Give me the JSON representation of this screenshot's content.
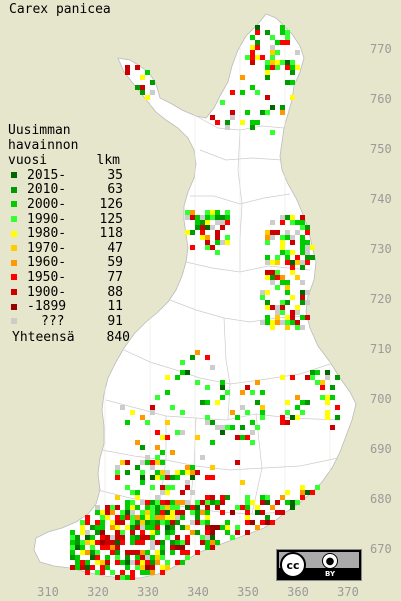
{
  "title": "Carex panicea",
  "legend": {
    "header_line1": "Uusimman",
    "header_line2": "havainnon",
    "header_line3": "vuosi",
    "count_header": "lkm",
    "rows": [
      {
        "label": "2015-",
        "count": "35",
        "color": "#006600"
      },
      {
        "label": "2010-",
        "count": "63",
        "color": "#009900"
      },
      {
        "label": "2000-",
        "count": "126",
        "color": "#00cc00"
      },
      {
        "label": "1990-",
        "count": "125",
        "color": "#33ff33"
      },
      {
        "label": "1980-",
        "count": "118",
        "color": "#ffff00"
      },
      {
        "label": "1970-",
        "count": "47",
        "color": "#ffcc00"
      },
      {
        "label": "1960-",
        "count": "59",
        "color": "#ff9900"
      },
      {
        "label": "1950-",
        "count": "77",
        "color": "#ff0000"
      },
      {
        "label": "1900-",
        "count": "88",
        "color": "#cc0000"
      },
      {
        "label": "-1899",
        "count": "11",
        "color": "#990000"
      },
      {
        "label": "???",
        "count": "91",
        "color": "#cccccc"
      }
    ],
    "total_label": "Yhteensä",
    "total_count": "840"
  },
  "y_ticks": [
    "770",
    "760",
    "750",
    "740",
    "730",
    "720",
    "710",
    "700",
    "690",
    "680",
    "670"
  ],
  "x_ticks": [
    "310",
    "320",
    "330",
    "340",
    "350",
    "360",
    "370"
  ],
  "license": {
    "cc": "cc",
    "by_icon": "person-icon",
    "by": "BY"
  },
  "colors": {
    "background": "#e6e6cc",
    "land": "#ffffff",
    "borders": "#cccccc",
    "grid_labels": "#9a9a9a"
  }
}
